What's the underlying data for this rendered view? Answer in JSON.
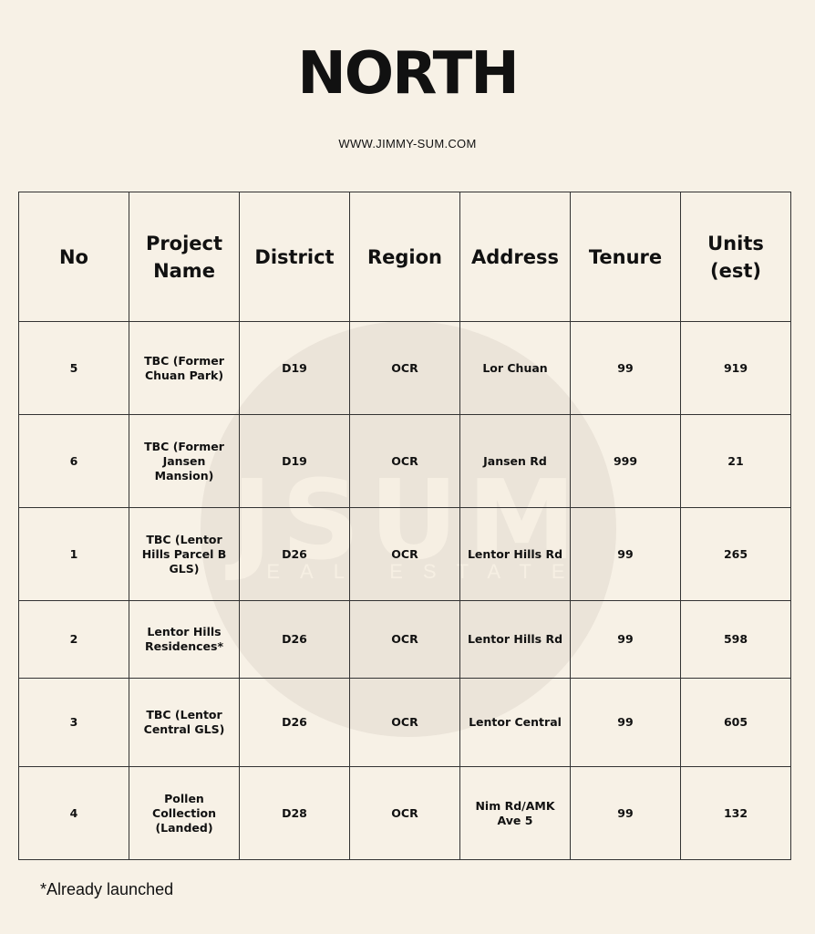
{
  "title": "NORTH",
  "website": "WWW.JIMMY-SUM.COM",
  "watermark": {
    "letters": "JSUM",
    "subtitle": "REAL ESTATE"
  },
  "table": {
    "headers": [
      "No",
      "Project Name",
      "District",
      "Region",
      "Address",
      "Tenure",
      "Units (est)"
    ],
    "rows": [
      [
        "5",
        "TBC (Former Chuan Park)",
        "D19",
        "OCR",
        "Lor Chuan",
        "99",
        "919"
      ],
      [
        "6",
        "TBC (Former Jansen Mansion)",
        "D19",
        "OCR",
        "Jansen Rd",
        "999",
        "21"
      ],
      [
        "1",
        "TBC (Lentor Hills Parcel B GLS)",
        "D26",
        "OCR",
        "Lentor Hills Rd",
        "99",
        "265"
      ],
      [
        "2",
        "Lentor Hills Residences*",
        "D26",
        "OCR",
        "Lentor Hills Rd",
        "99",
        "598"
      ],
      [
        "3",
        "TBC (Lentor Central GLS)",
        "D26",
        "OCR",
        "Lentor Central",
        "99",
        "605"
      ],
      [
        "4",
        "Pollen Collection (Landed)",
        "D28",
        "OCR",
        "Nim Rd/AMK Ave 5",
        "99",
        "132"
      ]
    ]
  },
  "footnote": "*Already launched",
  "colors": {
    "background": "#f7f1e6",
    "watermark": "#ebe4d9",
    "text": "#111111"
  }
}
